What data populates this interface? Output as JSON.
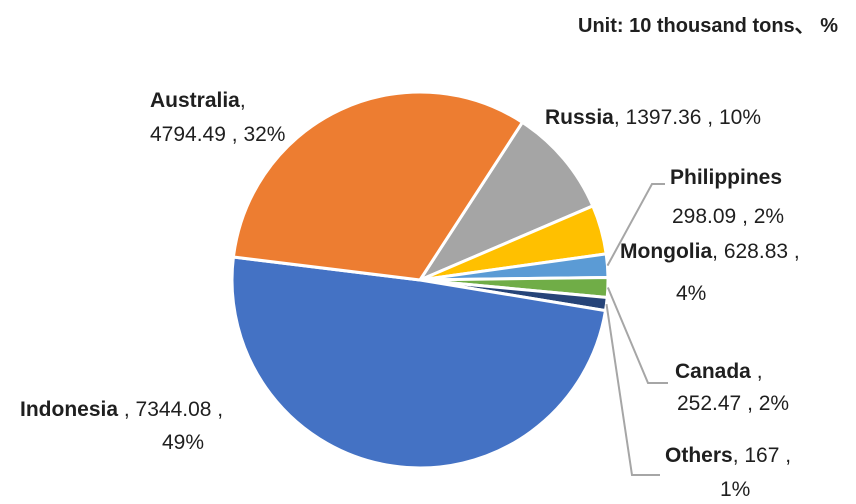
{
  "unit_label": "Unit: 10 thousand tons、 %",
  "chart_data": {
    "type": "pie",
    "title": "",
    "unit": "Unit: 10 thousand tons、 %",
    "slices": [
      {
        "name": "Indonesia",
        "value": 7344.08,
        "percent": "49%",
        "color": "#4472C4"
      },
      {
        "name": "Australia",
        "value": 4794.49,
        "percent": "32%",
        "color": "#ED7D31"
      },
      {
        "name": "Russia",
        "value": 1397.36,
        "percent": "10%",
        "color": "#A5A5A5"
      },
      {
        "name": "Mongolia",
        "value": 628.83,
        "percent": "4%",
        "color": "#FFC000"
      },
      {
        "name": "Philippines",
        "value": 298.09,
        "percent": "2%",
        "color": "#5B9BD5"
      },
      {
        "name": "Canada",
        "value": 252.47,
        "percent": "2%",
        "color": "#70AD47"
      },
      {
        "name": "Others",
        "value": 167.0,
        "percent": "1%",
        "color": "#264478"
      }
    ],
    "legend": "none"
  }
}
